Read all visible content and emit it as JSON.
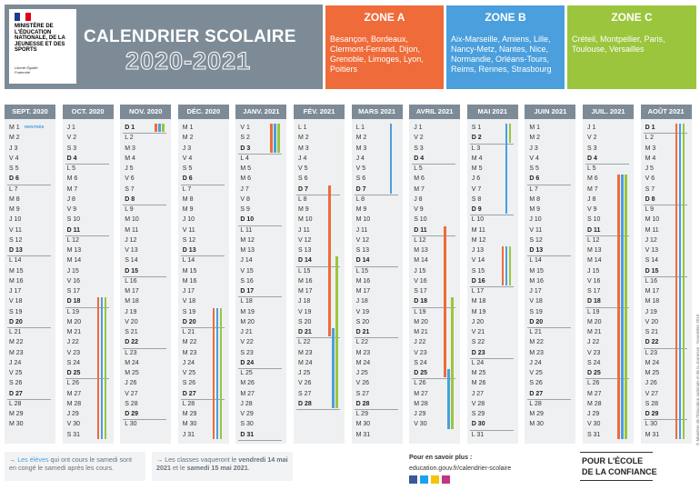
{
  "header": {
    "ministry": "MINISTÈRE DE L'ÉDUCATION NATIONALE, DE LA JEUNESSE ET DES SPORTS",
    "motto": "Liberté Égalité Fraternité",
    "title": "CALENDRIER SCOLAIRE",
    "year": "2020-2021"
  },
  "zones": [
    {
      "name": "ZONE A",
      "academies": "Besançon, Bordeaux, Clermont-Ferrand, Dijon, Grenoble, Limoges, Lyon, Poitiers"
    },
    {
      "name": "ZONE B",
      "academies": "Aix-Marseille, Amiens, Lille, Nancy-Metz, Nantes, Nice, Normandie, Orléans-Tours, Reims, Rennes, Strasbourg"
    },
    {
      "name": "ZONE C",
      "academies": "Créteil, Montpellier, Paris, Toulouse, Versailles"
    }
  ],
  "months": [
    {
      "name": "SEPT. 2020",
      "note": "RENTRÉE",
      "days": [
        "M 1",
        "M 2",
        "J 3",
        "V 4",
        "S 5",
        "D 6",
        "L 7",
        "M 8",
        "M 9",
        "J 10",
        "V 11",
        "S 12",
        "D 13",
        "L 14",
        "M 15",
        "M 16",
        "J 17",
        "V 18",
        "S 19",
        "D 20",
        "L 21",
        "M 22",
        "M 23",
        "J 24",
        "V 25",
        "S 26",
        "D 27",
        "L 28",
        "M 29",
        "M 30"
      ]
    },
    {
      "name": "OCT. 2020",
      "days": [
        "J 1",
        "V 2",
        "S 3",
        "D 4",
        "L 5",
        "M 6",
        "M 7",
        "J 8",
        "V 9",
        "S 10",
        "D 11",
        "L 12",
        "M 13",
        "M 14",
        "J 15",
        "V 16",
        "S 17",
        "D 18",
        "L 19",
        "M 20",
        "M 21",
        "J 22",
        "V 23",
        "S 24",
        "D 25",
        "L 26",
        "M 27",
        "M 28",
        "J 29",
        "V 30",
        "S 31"
      ]
    },
    {
      "name": "NOV. 2020",
      "days": [
        "D 1",
        "L 2",
        "M 3",
        "M 4",
        "J 5",
        "V 6",
        "S 7",
        "D 8",
        "L 9",
        "M 10",
        "M 11",
        "J 12",
        "V 13",
        "S 14",
        "D 15",
        "L 16",
        "M 17",
        "M 18",
        "J 19",
        "V 20",
        "S 21",
        "D 22",
        "L 23",
        "M 24",
        "M 25",
        "J 26",
        "V 27",
        "S 28",
        "D 29",
        "L 30"
      ]
    },
    {
      "name": "DÉC. 2020",
      "days": [
        "M 1",
        "M 2",
        "J 3",
        "V 4",
        "S 5",
        "D 6",
        "L 7",
        "M 8",
        "M 9",
        "J 10",
        "V 11",
        "S 12",
        "D 13",
        "L 14",
        "M 15",
        "M 16",
        "J 17",
        "V 18",
        "S 19",
        "D 20",
        "L 21",
        "M 22",
        "M 23",
        "J 24",
        "V 25",
        "S 26",
        "D 27",
        "L 28",
        "M 29",
        "M 30",
        "J 31"
      ]
    },
    {
      "name": "JANV. 2021",
      "days": [
        "V 1",
        "S 2",
        "D 3",
        "L 4",
        "M 5",
        "M 6",
        "J 7",
        "V 8",
        "S 9",
        "D 10",
        "L 11",
        "M 12",
        "M 13",
        "J 14",
        "V 15",
        "S 16",
        "D 17",
        "L 18",
        "M 19",
        "M 20",
        "J 21",
        "V 22",
        "S 23",
        "D 24",
        "L 25",
        "M 26",
        "M 27",
        "J 28",
        "V 29",
        "S 30",
        "D 31"
      ]
    },
    {
      "name": "FÉV. 2021",
      "days": [
        "L 1",
        "M 2",
        "M 3",
        "J 4",
        "V 5",
        "S 6",
        "D 7",
        "L 8",
        "M 9",
        "M 10",
        "J 11",
        "V 12",
        "S 13",
        "D 14",
        "L 15",
        "M 16",
        "M 17",
        "J 18",
        "V 19",
        "S 20",
        "D 21",
        "L 22",
        "M 23",
        "M 24",
        "J 25",
        "V 26",
        "S 27",
        "D 28"
      ]
    },
    {
      "name": "MARS 2021",
      "days": [
        "L 1",
        "M 2",
        "M 3",
        "J 4",
        "V 5",
        "S 6",
        "D 7",
        "L 8",
        "M 9",
        "M 10",
        "J 11",
        "V 12",
        "S 13",
        "D 14",
        "L 15",
        "M 16",
        "M 17",
        "J 18",
        "V 19",
        "S 20",
        "D 21",
        "L 22",
        "M 23",
        "M 24",
        "J 25",
        "V 26",
        "S 27",
        "D 28",
        "L 29",
        "M 30",
        "M 31"
      ]
    },
    {
      "name": "AVRIL 2021",
      "days": [
        "J 1",
        "V 2",
        "S 3",
        "D 4",
        "L 5",
        "M 6",
        "M 7",
        "J 8",
        "V 9",
        "S 10",
        "D 11",
        "L 12",
        "M 13",
        "M 14",
        "J 15",
        "V 16",
        "S 17",
        "D 18",
        "L 19",
        "M 20",
        "M 21",
        "J 22",
        "V 23",
        "S 24",
        "D 25",
        "L 26",
        "M 27",
        "M 28",
        "J 29",
        "V 30"
      ]
    },
    {
      "name": "MAI 2021",
      "days": [
        "S 1",
        "D 2",
        "L 3",
        "M 4",
        "M 5",
        "J 6",
        "V 7",
        "S 8",
        "D 9",
        "L 10",
        "M 11",
        "M 12",
        "J 13",
        "V 14",
        "S 15",
        "D 16",
        "L 17",
        "M 18",
        "M 19",
        "J 20",
        "V 21",
        "S 22",
        "D 23",
        "L 24",
        "M 25",
        "M 26",
        "J 27",
        "V 28",
        "S 29",
        "D 30",
        "L 31"
      ]
    },
    {
      "name": "JUIN 2021",
      "days": [
        "M 1",
        "M 2",
        "J 3",
        "V 4",
        "S 5",
        "D 6",
        "L 7",
        "M 8",
        "M 9",
        "J 10",
        "V 11",
        "S 12",
        "D 13",
        "L 14",
        "M 15",
        "M 16",
        "J 17",
        "V 18",
        "S 19",
        "D 20",
        "L 21",
        "M 22",
        "M 23",
        "J 24",
        "V 25",
        "S 26",
        "D 27",
        "L 28",
        "M 29",
        "M 30"
      ]
    },
    {
      "name": "JUIL. 2021",
      "days": [
        "J 1",
        "V 2",
        "S 3",
        "D 4",
        "L 5",
        "M 6",
        "M 7",
        "J 8",
        "V 9",
        "S 10",
        "D 11",
        "L 12",
        "M 13",
        "M 14",
        "J 15",
        "V 16",
        "S 17",
        "D 18",
        "L 19",
        "M 20",
        "M 21",
        "J 22",
        "V 23",
        "S 24",
        "D 25",
        "L 26",
        "M 27",
        "M 28",
        "J 29",
        "V 30",
        "S 31"
      ]
    },
    {
      "name": "AOÛT 2021",
      "days": [
        "D 1",
        "L 2",
        "M 3",
        "M 4",
        "J 5",
        "V 6",
        "S 7",
        "D 8",
        "L 9",
        "M 10",
        "M 11",
        "J 12",
        "V 13",
        "S 14",
        "D 15",
        "L 16",
        "M 17",
        "M 18",
        "J 19",
        "V 20",
        "S 21",
        "D 22",
        "L 23",
        "M 24",
        "M 25",
        "J 26",
        "V 27",
        "S 28",
        "D 29",
        "L 30",
        "M 31"
      ]
    }
  ],
  "footer": {
    "note1": {
      "highlight": "Les élèves",
      "text": " qui ont cours le samedi sont en congé le samedi après les cours."
    },
    "note2": {
      "text": "Les classes vaqueront le ",
      "date1": "vendredi 14 mai 2021",
      "middle": " et le ",
      "date2": "samedi 15 mai 2021",
      "end": "."
    },
    "more": "Pour en savoir plus :",
    "link": "education.gouv.fr/calendrier-scolaire",
    "slogan1": "POUR L'ÉCOLE",
    "slogan2": "DE LA CONFIANCE",
    "credit": "© Ministère de l'Éducation nationale et de la Jeunesse - Novembre 2019"
  }
}
